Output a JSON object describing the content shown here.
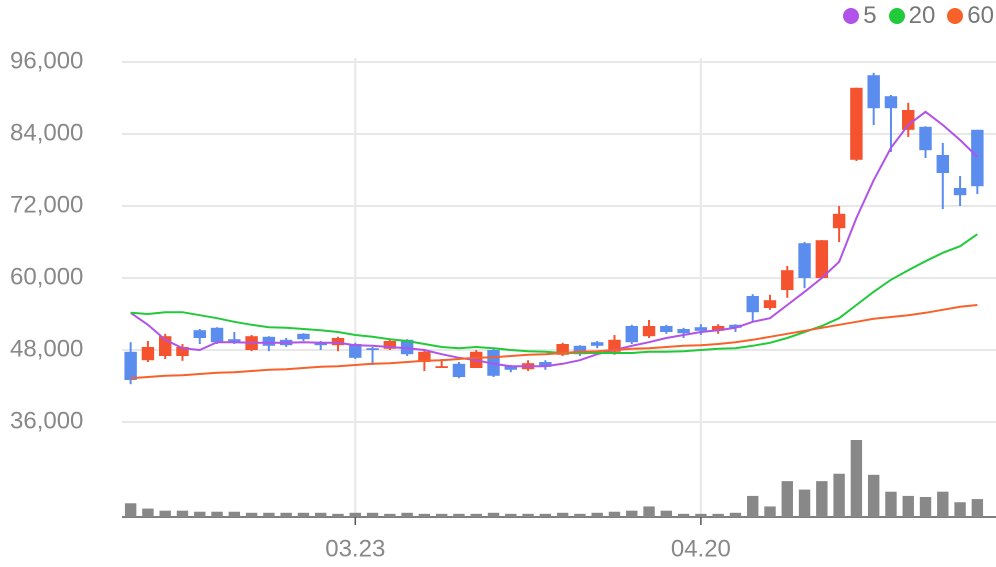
{
  "chart_data": {
    "type": "candlestick",
    "categories": [
      null,
      null,
      null,
      null,
      null,
      null,
      null,
      null,
      null,
      null,
      null,
      null,
      null,
      "03.23",
      null,
      null,
      null,
      null,
      null,
      null,
      null,
      null,
      null,
      null,
      null,
      null,
      null,
      null,
      null,
      null,
      null,
      null,
      null,
      "04.20",
      null,
      null,
      null,
      null,
      null,
      null,
      null,
      null,
      null,
      null,
      null,
      null,
      null,
      null,
      null,
      null
    ],
    "open": [
      47700,
      46300,
      47000,
      47000,
      51300,
      51700,
      49800,
      48000,
      50200,
      49700,
      50700,
      49300,
      48800,
      49000,
      48300,
      48200,
      49700,
      46000,
      45000,
      45700,
      45000,
      48000,
      45300,
      44800,
      46000,
      47200,
      48700,
      49300,
      47700,
      52000,
      50300,
      52000,
      51500,
      51800,
      51200,
      52200,
      57000,
      55000,
      58000,
      65800,
      60000,
      68300,
      79700,
      93800,
      90300,
      84700,
      85200,
      80500,
      75000,
      84700
    ],
    "high": [
      49300,
      49500,
      50700,
      49000,
      51500,
      51800,
      51000,
      50500,
      50300,
      50000,
      50800,
      49500,
      50200,
      49200,
      48500,
      49800,
      49800,
      48000,
      46500,
      46000,
      48000,
      48200,
      45500,
      46300,
      46300,
      49200,
      48800,
      49500,
      50500,
      52200,
      53000,
      52200,
      51700,
      52300,
      52300,
      52300,
      57300,
      57200,
      62000,
      66000,
      66300,
      72000,
      91700,
      94200,
      90500,
      89200,
      85300,
      82500,
      77000,
      84700
    ],
    "low": [
      42300,
      46000,
      46500,
      46200,
      49000,
      49000,
      49000,
      47800,
      47800,
      48500,
      49500,
      48000,
      47800,
      46500,
      45500,
      48000,
      47000,
      44500,
      45000,
      43300,
      45000,
      43500,
      44300,
      44500,
      44700,
      47000,
      47000,
      48300,
      47200,
      49000,
      50000,
      50700,
      50000,
      50500,
      50700,
      51000,
      52700,
      54700,
      56700,
      58300,
      60000,
      66000,
      79500,
      85500,
      81000,
      83500,
      80000,
      71500,
      72000,
      74000
    ],
    "close": [
      43000,
      48500,
      50300,
      48500,
      50000,
      49300,
      49200,
      50300,
      48700,
      48800,
      49800,
      48800,
      50000,
      46700,
      48000,
      49500,
      47300,
      47700,
      45300,
      43500,
      47700,
      43700,
      44700,
      45800,
      45200,
      49000,
      47300,
      48700,
      49700,
      49300,
      52000,
      51000,
      50800,
      51200,
      52000,
      51700,
      54300,
      56300,
      61300,
      60000,
      66300,
      70700,
      91700,
      88300,
      88300,
      88000,
      81300,
      77500,
      73800,
      75300
    ],
    "volume": [
      13,
      8,
      6,
      6,
      5,
      5,
      5,
      4,
      4,
      4,
      4,
      4,
      3,
      4,
      4,
      3,
      4,
      3,
      3,
      3,
      3,
      4,
      3,
      3,
      3,
      4,
      3,
      4,
      5,
      6,
      10,
      6,
      3,
      3,
      3,
      4,
      20,
      10,
      34,
      26,
      34,
      41,
      73,
      40,
      24,
      20,
      19,
      24,
      14,
      17
    ],
    "up_color": "#f5532f",
    "down_color": "#5b8def",
    "volume_color": "#888888",
    "series": [
      {
        "name": "5",
        "color": "#b152e8",
        "values": [
          54200,
          52200,
          49700,
          48300,
          48000,
          49300,
          49300,
          49200,
          49200,
          49200,
          49300,
          49200,
          49200,
          48800,
          48700,
          48500,
          48300,
          48000,
          47300,
          46700,
          46300,
          45700,
          45300,
          45300,
          45300,
          45700,
          46300,
          47300,
          48000,
          48700,
          49300,
          50000,
          50500,
          51000,
          51300,
          51700,
          52700,
          53300,
          55500,
          57700,
          60000,
          62700,
          70000,
          76300,
          81700,
          85500,
          87700,
          85500,
          83000,
          80200
        ]
      },
      {
        "name": "20",
        "color": "#22c93a",
        "values": [
          54200,
          54000,
          54300,
          54300,
          53800,
          53300,
          52700,
          52200,
          51800,
          51700,
          51500,
          51300,
          51000,
          50500,
          50200,
          49800,
          49500,
          49000,
          48500,
          48300,
          48500,
          48300,
          48000,
          47800,
          47700,
          47500,
          47500,
          47500,
          47500,
          47500,
          47700,
          47700,
          47800,
          48000,
          48200,
          48300,
          48700,
          49200,
          50000,
          51000,
          52000,
          53300,
          55500,
          57700,
          59700,
          61300,
          62800,
          64200,
          65300,
          67300
        ]
      },
      {
        "name": "60",
        "color": "#f7612a",
        "values": [
          43300,
          43500,
          43700,
          43800,
          44000,
          44200,
          44300,
          44500,
          44700,
          44800,
          45000,
          45200,
          45300,
          45500,
          45700,
          45800,
          46000,
          46200,
          46300,
          46500,
          46700,
          46800,
          47000,
          47200,
          47300,
          47500,
          47700,
          47800,
          48000,
          48200,
          48300,
          48500,
          48700,
          48800,
          49000,
          49300,
          49700,
          50200,
          50700,
          51200,
          51700,
          52200,
          52700,
          53200,
          53500,
          53800,
          54200,
          54700,
          55200,
          55500
        ]
      }
    ],
    "ylim": [
      32000,
      100000
    ],
    "yticks": [
      {
        "value": 36000,
        "label": "36,000"
      },
      {
        "value": 48000,
        "label": "48,000"
      },
      {
        "value": 60000,
        "label": "60,000"
      },
      {
        "value": 72000,
        "label": "72,000"
      },
      {
        "value": 84000,
        "label": "84,000"
      },
      {
        "value": 96000,
        "label": "96,000"
      }
    ],
    "grid": true,
    "legend": "top-right"
  }
}
